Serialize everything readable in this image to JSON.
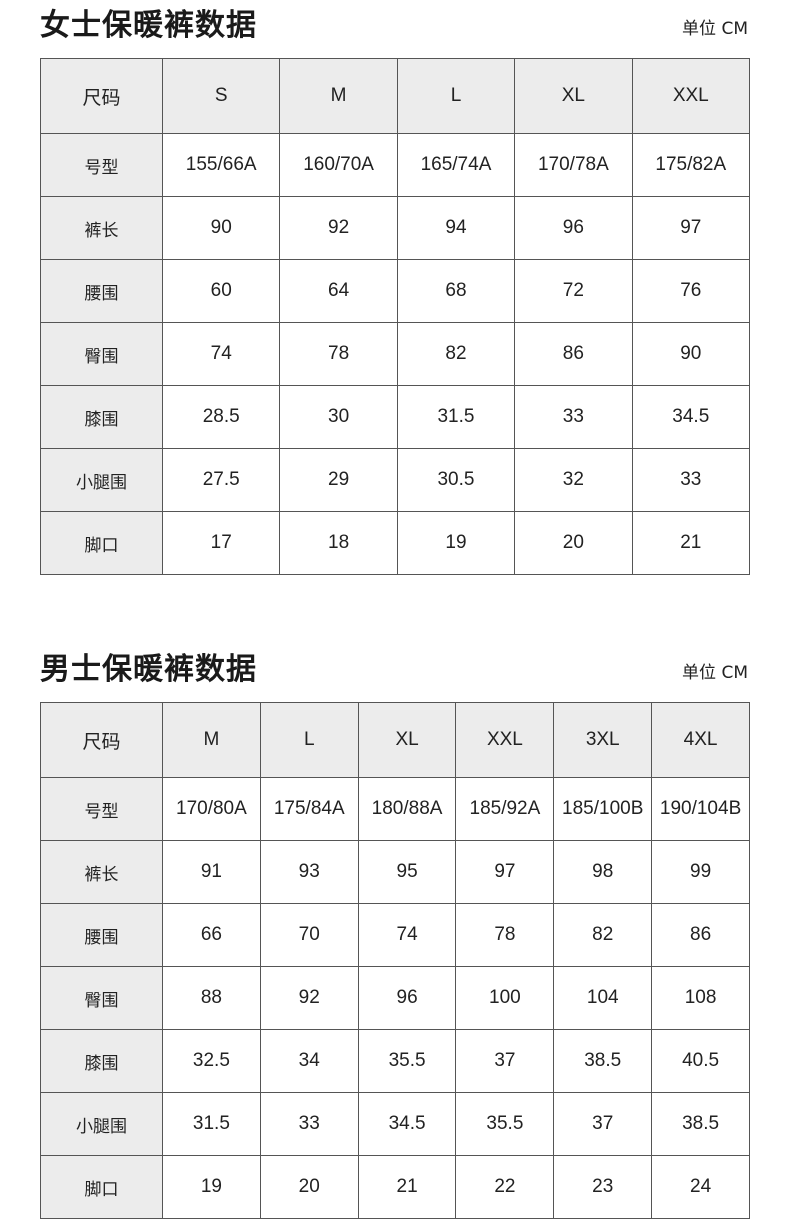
{
  "women": {
    "title": "女士保暖裤数据",
    "unit": "单位 CM",
    "header": [
      "尺码",
      "S",
      "M",
      "L",
      "XL",
      "XXL"
    ],
    "rows": [
      [
        "号型",
        "155/66A",
        "160/70A",
        "165/74A",
        "170/78A",
        "175/82A"
      ],
      [
        "裤长",
        "90",
        "92",
        "94",
        "96",
        "97"
      ],
      [
        "腰围",
        "60",
        "64",
        "68",
        "72",
        "76"
      ],
      [
        "臀围",
        "74",
        "78",
        "82",
        "86",
        "90"
      ],
      [
        "膝围",
        "28.5",
        "30",
        "31.5",
        "33",
        "34.5"
      ],
      [
        "小腿围",
        "27.5",
        "29",
        "30.5",
        "32",
        "33"
      ],
      [
        "脚口",
        "17",
        "18",
        "19",
        "20",
        "21"
      ]
    ]
  },
  "men": {
    "title": "男士保暖裤数据",
    "unit": "单位 CM",
    "header": [
      "尺码",
      "M",
      "L",
      "XL",
      "XXL",
      "3XL",
      "4XL"
    ],
    "rows": [
      [
        "号型",
        "170/80A",
        "175/84A",
        "180/88A",
        "185/92A",
        "185/100B",
        "190/104B"
      ],
      [
        "裤长",
        "91",
        "93",
        "95",
        "97",
        "98",
        "99"
      ],
      [
        "腰围",
        "66",
        "70",
        "74",
        "78",
        "82",
        "86"
      ],
      [
        "臀围",
        "88",
        "92",
        "96",
        "100",
        "104",
        "108"
      ],
      [
        "膝围",
        "32.5",
        "34",
        "35.5",
        "37",
        "38.5",
        "40.5"
      ],
      [
        "小腿围",
        "31.5",
        "33",
        "34.5",
        "35.5",
        "37",
        "38.5"
      ],
      [
        "脚口",
        "19",
        "20",
        "21",
        "22",
        "23",
        "24"
      ]
    ]
  },
  "colors": {
    "header_fill": "#ececec",
    "border": "#555555"
  }
}
